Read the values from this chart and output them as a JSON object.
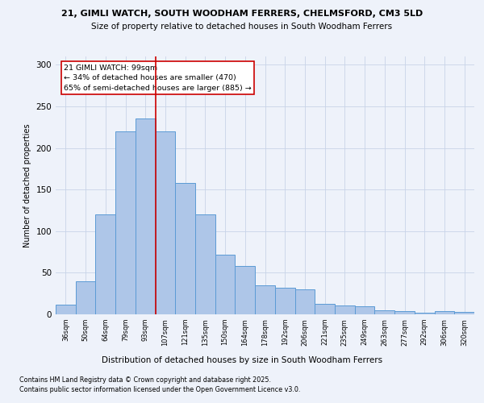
{
  "title1": "21, GIMLI WATCH, SOUTH WOODHAM FERRERS, CHELMSFORD, CM3 5LD",
  "title2": "Size of property relative to detached houses in South Woodham Ferrers",
  "xlabel": "Distribution of detached houses by size in South Woodham Ferrers",
  "ylabel": "Number of detached properties",
  "categories": [
    "36sqm",
    "50sqm",
    "64sqm",
    "79sqm",
    "93sqm",
    "107sqm",
    "121sqm",
    "135sqm",
    "150sqm",
    "164sqm",
    "178sqm",
    "192sqm",
    "206sqm",
    "221sqm",
    "235sqm",
    "249sqm",
    "263sqm",
    "277sqm",
    "292sqm",
    "306sqm",
    "320sqm"
  ],
  "values": [
    12,
    40,
    120,
    220,
    235,
    220,
    158,
    120,
    72,
    58,
    35,
    32,
    30,
    13,
    11,
    10,
    5,
    4,
    2,
    4,
    3
  ],
  "bar_color": "#aec6e8",
  "bar_edge_color": "#5b9bd5",
  "marker_color": "#cc0000",
  "annotation_text": "21 GIMLI WATCH: 99sqm\n← 34% of detached houses are smaller (470)\n65% of semi-detached houses are larger (885) →",
  "annotation_box_color": "#ffffff",
  "annotation_box_edge": "#cc0000",
  "footer1": "Contains HM Land Registry data © Crown copyright and database right 2025.",
  "footer2": "Contains public sector information licensed under the Open Government Licence v3.0.",
  "bg_color": "#eef2fa",
  "grid_color": "#c8d4e8",
  "ylim": [
    0,
    310
  ],
  "yticks": [
    0,
    50,
    100,
    150,
    200,
    250,
    300
  ]
}
